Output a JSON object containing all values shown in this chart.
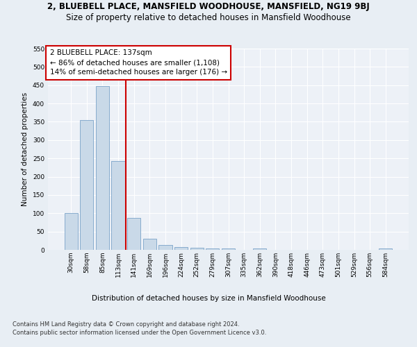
{
  "title_line1": "2, BLUEBELL PLACE, MANSFIELD WOODHOUSE, MANSFIELD, NG19 9BJ",
  "title_line2": "Size of property relative to detached houses in Mansfield Woodhouse",
  "xlabel": "Distribution of detached houses by size in Mansfield Woodhouse",
  "ylabel": "Number of detached properties",
  "categories": [
    "30sqm",
    "58sqm",
    "85sqm",
    "113sqm",
    "141sqm",
    "169sqm",
    "196sqm",
    "224sqm",
    "252sqm",
    "279sqm",
    "307sqm",
    "335sqm",
    "362sqm",
    "390sqm",
    "418sqm",
    "446sqm",
    "473sqm",
    "501sqm",
    "529sqm",
    "556sqm",
    "584sqm"
  ],
  "values": [
    100,
    355,
    447,
    242,
    88,
    30,
    13,
    8,
    5,
    4,
    3,
    0,
    4,
    0,
    0,
    0,
    0,
    0,
    0,
    0,
    3
  ],
  "bar_color": "#c9d9e8",
  "bar_edge_color": "#7aa3c8",
  "vline_color": "#cc0000",
  "vline_index": 3.5,
  "annotation_text": "2 BLUEBELL PLACE: 137sqm\n← 86% of detached houses are smaller (1,108)\n14% of semi-detached houses are larger (176) →",
  "annotation_box_color": "#ffffff",
  "annotation_box_edge": "#cc0000",
  "ylim": [
    0,
    550
  ],
  "yticks": [
    0,
    50,
    100,
    150,
    200,
    250,
    300,
    350,
    400,
    450,
    500,
    550
  ],
  "bg_color": "#e8eef4",
  "plot_bg_color": "#edf1f7",
  "grid_color": "#ffffff",
  "footnote": "Contains HM Land Registry data © Crown copyright and database right 2024.\nContains public sector information licensed under the Open Government Licence v3.0.",
  "title_fontsize": 8.5,
  "subtitle_fontsize": 8.5,
  "annotation_fontsize": 7.5,
  "axis_label_fontsize": 7.5,
  "tick_fontsize": 6.5,
  "footnote_fontsize": 6.0
}
